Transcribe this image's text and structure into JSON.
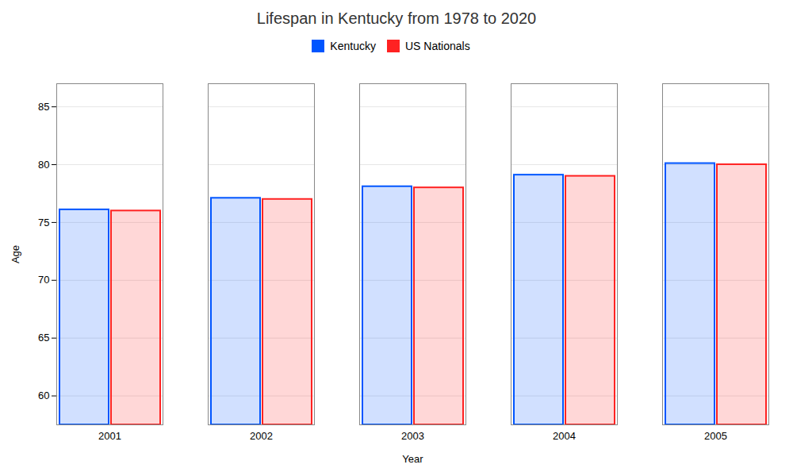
{
  "chart_data": {
    "type": "bar",
    "title": "Lifespan in Kentucky from 1978 to 2020",
    "xlabel": "Year",
    "ylabel": "Age",
    "categories": [
      "2001",
      "2002",
      "2003",
      "2004",
      "2005"
    ],
    "series": [
      {
        "name": "Kentucky",
        "color": "#0055ff",
        "values": [
          76.1,
          77.1,
          78.1,
          79.1,
          80.1
        ]
      },
      {
        "name": "US Nationals",
        "color": "#ff2222",
        "values": [
          76.0,
          77.0,
          78.0,
          79.0,
          80.0
        ]
      }
    ],
    "ylim": [
      57.5,
      87
    ],
    "yticks": [
      60,
      65,
      70,
      75,
      80,
      85
    ],
    "grid": true,
    "legend": "top"
  }
}
